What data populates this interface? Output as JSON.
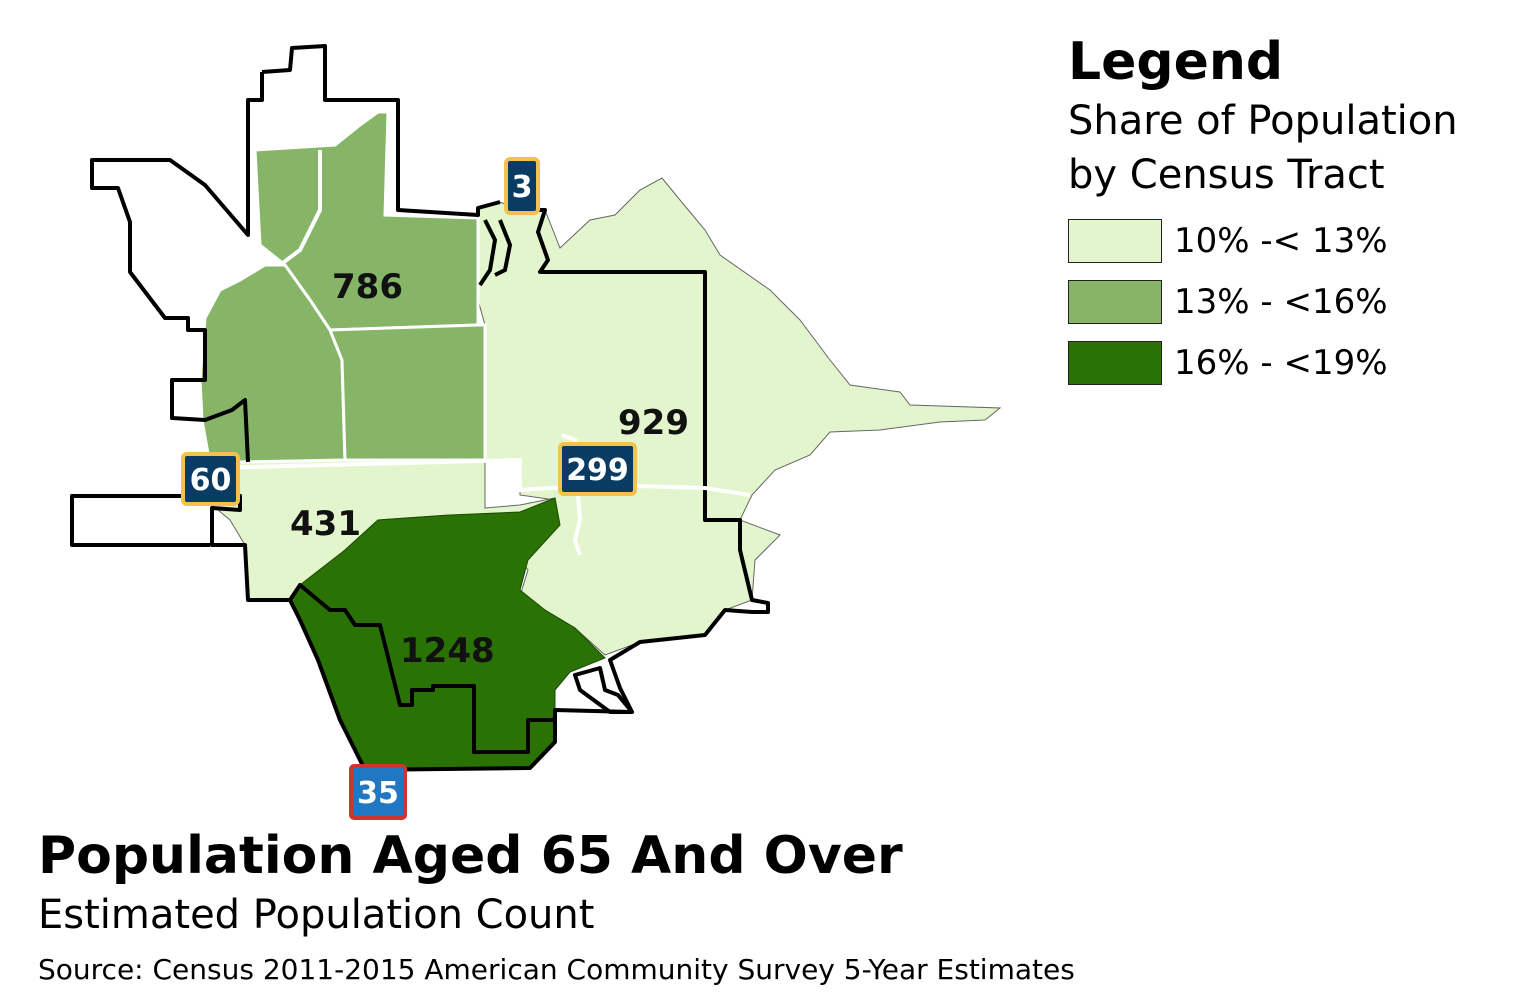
{
  "legend": {
    "title": "Legend",
    "subtitle_line1": "Share of Population",
    "subtitle_line2": "by Census Tract",
    "items": [
      {
        "label": "10% -< 13%",
        "color": "#e3f5cc"
      },
      {
        "label": "13% - <16%",
        "color": "#86b568"
      },
      {
        "label": "16% - <19%",
        "color": "#2a7204"
      }
    ]
  },
  "map": {
    "tract_labels": [
      "786",
      "929",
      "431",
      "1248"
    ],
    "highway_shields": [
      {
        "number": "3",
        "type": "state"
      },
      {
        "number": "60",
        "type": "state"
      },
      {
        "number": "299",
        "type": "state"
      },
      {
        "number": "35",
        "type": "interstate"
      }
    ],
    "colors": {
      "shield_fill": "#0a3b63",
      "shield_border": "#f2c14e",
      "interstate_fill": "#2277c2",
      "interstate_border": "#d0342c",
      "boundary": "#000000",
      "road": "#ffffff"
    }
  },
  "title": "Population Aged 65 And Over",
  "subtitle": "Estimated Population Count",
  "source": "Source: Census 2011-2015 American Community Survey 5-Year Estimates"
}
